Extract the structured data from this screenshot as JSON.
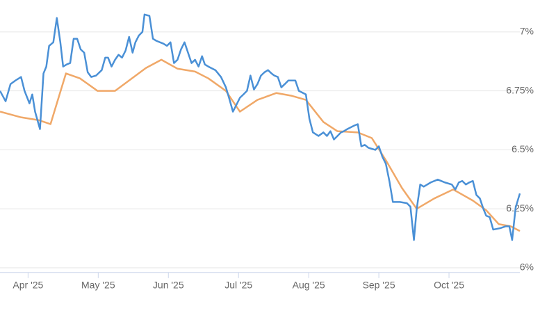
{
  "chart_data": {
    "type": "line",
    "xlim": [
      3.6,
      11.01
    ],
    "xticks": [
      {
        "value": 4,
        "label": "Apr '25"
      },
      {
        "value": 5,
        "label": "May '25"
      },
      {
        "value": 6,
        "label": "Jun '25"
      },
      {
        "value": 7,
        "label": "Jul '25"
      },
      {
        "value": 8,
        "label": "Aug '25"
      },
      {
        "value": 9,
        "label": "Sep '25"
      },
      {
        "value": 10,
        "label": "Oct '25"
      }
    ],
    "ylim": [
      5.98,
      7.13
    ],
    "yticks": [
      {
        "value": 6,
        "label": "6%"
      },
      {
        "value": 6.25,
        "label": "6.25%"
      },
      {
        "value": 6.5,
        "label": "6.5%"
      },
      {
        "value": 6.75,
        "label": "6.75%"
      },
      {
        "value": 7,
        "label": "7%"
      }
    ],
    "grid": true,
    "series": [
      {
        "color": "#4a90d6",
        "x": [
          3.6,
          3.68,
          3.75,
          3.82,
          3.9,
          3.95,
          4.02,
          4.06,
          4.1,
          4.17,
          4.22,
          4.26,
          4.3,
          4.36,
          4.41,
          4.46,
          4.5,
          4.55,
          4.6,
          4.65,
          4.7,
          4.75,
          4.8,
          4.85,
          4.9,
          4.97,
          5.05,
          5.1,
          5.14,
          5.19,
          5.24,
          5.29,
          5.34,
          5.39,
          5.44,
          5.49,
          5.53,
          5.58,
          5.63,
          5.66,
          5.73,
          5.78,
          5.83,
          5.93,
          5.98,
          6.03,
          6.08,
          6.13,
          6.18,
          6.23,
          6.28,
          6.33,
          6.38,
          6.43,
          6.48,
          6.52,
          6.57,
          6.67,
          6.75,
          6.82,
          6.87,
          6.92,
          6.97,
          7.02,
          7.07,
          7.12,
          7.17,
          7.22,
          7.27,
          7.32,
          7.37,
          7.42,
          7.47,
          7.51,
          7.56,
          7.61,
          7.66,
          7.71,
          7.76,
          7.81,
          7.86,
          7.96,
          8.01,
          8.06,
          8.14,
          8.21,
          8.26,
          8.31,
          8.36,
          8.41,
          8.46,
          8.5,
          8.55,
          8.65,
          8.7,
          8.75,
          8.8,
          8.85,
          8.95,
          9.0,
          9.05,
          9.1,
          9.15,
          9.2,
          9.3,
          9.4,
          9.45,
          9.5,
          9.54,
          9.59,
          9.64,
          9.69,
          9.74,
          9.84,
          9.94,
          10.04,
          10.09,
          10.14,
          10.19,
          10.24,
          10.29,
          10.34,
          10.39,
          10.44,
          10.49,
          10.53,
          10.58,
          10.63,
          10.73,
          10.81,
          10.86,
          10.9,
          10.95,
          11.01
        ],
        "values": [
          6.75,
          6.706,
          6.779,
          6.794,
          6.809,
          6.75,
          6.697,
          6.735,
          6.662,
          6.588,
          6.824,
          6.853,
          6.941,
          6.956,
          7.059,
          6.956,
          6.853,
          6.862,
          6.868,
          6.971,
          6.971,
          6.926,
          6.912,
          6.829,
          6.809,
          6.815,
          6.838,
          6.891,
          6.891,
          6.853,
          6.882,
          6.903,
          6.891,
          6.921,
          6.979,
          6.912,
          6.956,
          6.985,
          7.0,
          7.074,
          7.068,
          6.971,
          6.962,
          6.95,
          6.941,
          6.956,
          6.868,
          6.882,
          6.926,
          6.956,
          6.912,
          6.868,
          6.882,
          6.853,
          6.897,
          6.862,
          6.853,
          6.838,
          6.809,
          6.765,
          6.715,
          6.662,
          6.691,
          6.721,
          6.735,
          6.75,
          6.815,
          6.756,
          6.779,
          6.815,
          6.829,
          6.838,
          6.824,
          6.815,
          6.809,
          6.765,
          6.779,
          6.794,
          6.794,
          6.794,
          6.75,
          6.735,
          6.632,
          6.574,
          6.559,
          6.574,
          6.559,
          6.579,
          6.544,
          6.559,
          6.574,
          6.579,
          6.588,
          6.603,
          6.609,
          6.515,
          6.521,
          6.509,
          6.5,
          6.515,
          6.471,
          6.441,
          6.368,
          6.279,
          6.279,
          6.274,
          6.259,
          6.118,
          6.25,
          6.353,
          6.344,
          6.353,
          6.362,
          6.374,
          6.362,
          6.353,
          6.332,
          6.362,
          6.368,
          6.353,
          6.362,
          6.368,
          6.309,
          6.294,
          6.25,
          6.221,
          6.215,
          6.162,
          6.168,
          6.176,
          6.176,
          6.118,
          6.256,
          6.315
        ]
      },
      {
        "color": "#f0a868",
        "x": [
          3.6,
          3.9,
          4.15,
          4.32,
          4.54,
          4.74,
          4.99,
          5.24,
          5.68,
          5.9,
          6.13,
          6.38,
          6.57,
          6.82,
          7.02,
          7.27,
          7.54,
          7.76,
          7.96,
          8.21,
          8.41,
          8.7,
          8.9,
          9.1,
          9.33,
          9.54,
          9.79,
          10.06,
          10.34,
          10.53,
          10.71,
          10.88,
          11.01
        ],
        "values": [
          6.662,
          6.638,
          6.626,
          6.609,
          6.824,
          6.803,
          6.75,
          6.75,
          6.847,
          6.882,
          6.844,
          6.832,
          6.803,
          6.75,
          6.662,
          6.712,
          6.741,
          6.729,
          6.712,
          6.618,
          6.579,
          6.574,
          6.55,
          6.456,
          6.338,
          6.25,
          6.294,
          6.332,
          6.285,
          6.244,
          6.185,
          6.176,
          6.156
        ]
      }
    ]
  }
}
